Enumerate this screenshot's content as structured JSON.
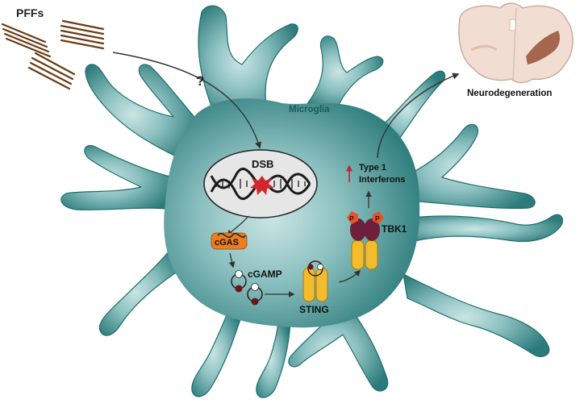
{
  "labels": {
    "pffs": "PFFs",
    "question": "?",
    "microglia": "Microglia",
    "dsb": "DSB",
    "cgas": "cGAS",
    "cgamp": "cGAMP",
    "sting": "STING",
    "tbk1": "TBK1",
    "phospho_left": "P",
    "phospho_right": "P",
    "interferons_line1": "Type 1",
    "interferons_line2": "Interferons",
    "neurodegeneration": "Neurodegeneration"
  },
  "colors": {
    "cell_center": "#bcdcdc",
    "cell_mid": "#5fa4a4",
    "cell_edge": "#1f6d6d",
    "microglia_text": "#1d5a5a",
    "nucleus_fill": "#e6e6e6",
    "dsb_mark": "#d2262c",
    "cgas": "#ee7d1f",
    "sting": "#f3bc2d",
    "tbk1": "#6e1f3c",
    "phospho": "#e0552a",
    "cgamp_dark": "#6e1414",
    "interferon_arrow": "#c0243a",
    "fibril": "#6b3b12",
    "brain_fill": "#f2ddd3",
    "brain_damage": "#9b5a3e"
  },
  "icons": [
    "pff-fibril-icon",
    "dna-helix-icon",
    "dsb-star-icon",
    "cgamp-molecule-icon",
    "sting-dimer-icon",
    "tbk1-complex-icon",
    "brain-section-icon",
    "up-arrow-icon"
  ]
}
